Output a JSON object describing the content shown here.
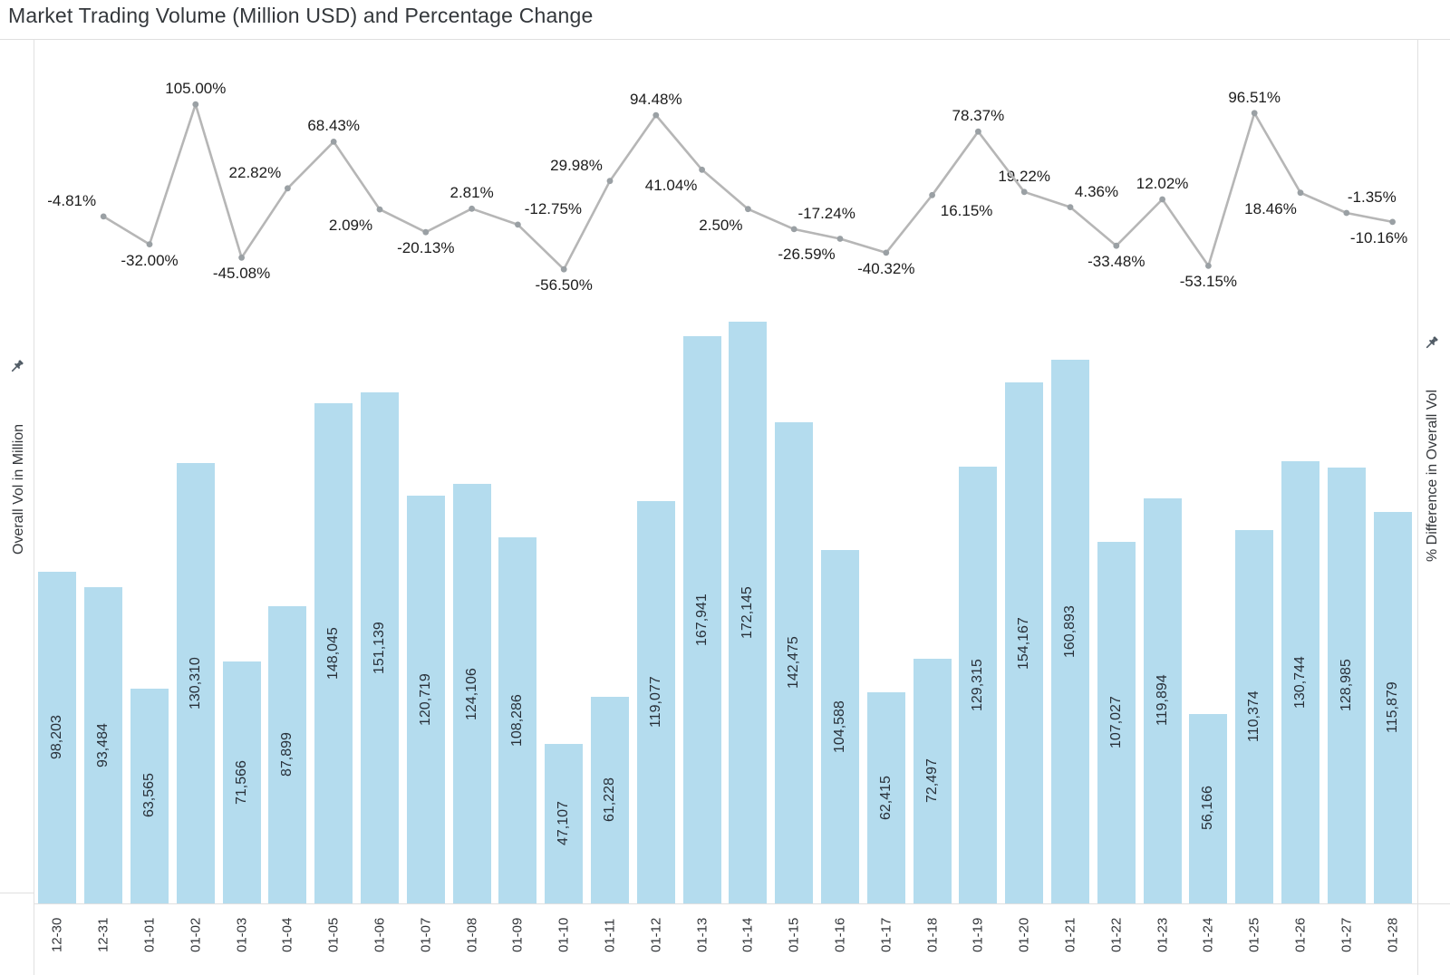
{
  "title": "Market Trading Volume (Million USD) and Percentage Change",
  "left_axis": {
    "label": "Overall Vol in Million",
    "pin_icon": "pushpin-icon"
  },
  "right_axis": {
    "label": "% Difference in Overall Vol",
    "pin_icon": "pushpin-icon"
  },
  "colors": {
    "bar": "#b4dcee",
    "line": "#b6b6b6",
    "marker": "#9aa0a4",
    "bar_label": "#283039",
    "pct_label": "#1c1c1c",
    "tick_label": "#33363a",
    "divider": "#e0e0e0",
    "pin": "#4f5a64"
  },
  "chart_data": {
    "type": "bar+line",
    "title": "Market Trading Volume (Million USD) and Percentage Change",
    "grid": false,
    "legend": false,
    "categories": [
      "12-30",
      "12-31",
      "01-01",
      "01-02",
      "01-03",
      "01-04",
      "01-05",
      "01-06",
      "01-07",
      "01-08",
      "01-09",
      "01-10",
      "01-11",
      "01-12",
      "01-13",
      "01-14",
      "01-15",
      "01-16",
      "01-17",
      "01-18",
      "01-19",
      "01-20",
      "01-21",
      "01-22",
      "01-23",
      "01-24",
      "01-25",
      "01-26",
      "01-27",
      "01-28"
    ],
    "series": [
      {
        "name": "Overall Vol in Million",
        "type": "bar",
        "axis": "left",
        "values": [
          98203,
          93484,
          63565,
          130310,
          71566,
          87899,
          148045,
          151139,
          120719,
          124106,
          108286,
          47107,
          61228,
          119077,
          167941,
          172145,
          142475,
          104588,
          62415,
          72497,
          129315,
          154167,
          160893,
          107027,
          119894,
          56166,
          110374,
          130744,
          128985,
          115879
        ],
        "labels": [
          "98,203",
          "93,484",
          "63,565",
          "130,310",
          "71,566",
          "87,899",
          "148,045",
          "151,139",
          "120,719",
          "124,106",
          "108,286",
          "47,107",
          "61,228",
          "119,077",
          "167,941",
          "172,145",
          "142,475",
          "104,588",
          "62,415",
          "72,497",
          "129,315",
          "154,167",
          "160,893",
          "107,027",
          "119,894",
          "56,166",
          "110,374",
          "130,744",
          "128,985",
          "115,879"
        ]
      },
      {
        "name": "% Difference in Overall Vol",
        "type": "line",
        "axis": "right",
        "x_categories": [
          "12-31",
          "01-01",
          "01-02",
          "01-03",
          "01-04",
          "01-05",
          "01-06",
          "01-07",
          "01-08",
          "01-09",
          "01-10",
          "01-11",
          "01-12",
          "01-13",
          "01-14",
          "01-15",
          "01-16",
          "01-17",
          "01-18",
          "01-19",
          "01-20",
          "01-21",
          "01-22",
          "01-23",
          "01-24",
          "01-25",
          "01-26",
          "01-27",
          "01-28"
        ],
        "values": [
          -4.81,
          -32.0,
          105.0,
          -45.08,
          22.82,
          68.43,
          2.09,
          -20.13,
          2.81,
          -12.75,
          -56.5,
          29.98,
          94.48,
          41.04,
          2.5,
          -17.24,
          -26.59,
          -40.32,
          16.15,
          78.37,
          19.22,
          4.36,
          -33.48,
          12.02,
          -53.15,
          96.51,
          18.46,
          -1.35,
          -10.16
        ],
        "labels": [
          "-4.81%",
          "-32.00%",
          "105.00%",
          "-45.08%",
          "22.82%",
          "68.43%",
          "2.09%",
          "-20.13%",
          "2.81%",
          "-12.75%",
          "-56.50%",
          "29.98%",
          "94.48%",
          "41.04%",
          "2.50%",
          "-17.24%",
          "-26.59%",
          "-40.32%",
          "16.15%",
          "78.37%",
          "19.22%",
          "4.36%",
          "-33.48%",
          "12.02%",
          "-53.15%",
          "96.51%",
          "18.46%",
          "-1.35%",
          "-10.16%"
        ],
        "label_side": [
          "above",
          "below",
          "above",
          "below",
          "above",
          "above",
          "below",
          "below",
          "above",
          "above",
          "below",
          "above",
          "above",
          "below",
          "below",
          "above",
          "below",
          "below",
          "below",
          "above",
          "above",
          "above",
          "below",
          "above",
          "below",
          "above",
          "below",
          "above",
          "below"
        ],
        "label_dx": [
          -35,
          0,
          0,
          0,
          -36,
          0,
          -32,
          0,
          0,
          39,
          0,
          -37,
          0,
          -34,
          -30,
          36,
          -37,
          0,
          38,
          0,
          0,
          29,
          0,
          0,
          0,
          0,
          -33,
          28,
          -15
        ]
      }
    ]
  }
}
